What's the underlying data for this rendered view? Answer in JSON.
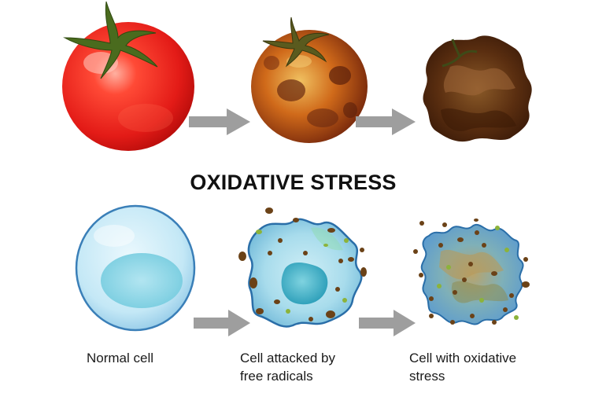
{
  "title": "OXIDATIVE STRESS",
  "captions": {
    "normal_cell": "Normal cell",
    "attacked_line1": "Cell attacked by",
    "attacked_line2": "free radicals",
    "oxidative_line1": "Cell with oxidative",
    "oxidative_line2": "stress"
  },
  "colors": {
    "arrow": "#9e9e9e",
    "tomato_fresh": "#e8201e",
    "tomato_aging": "#c0561a",
    "tomato_rotten": "#6b3a12",
    "cell_normal": "#bfe6f5",
    "cell_outline": "#2a6ea8",
    "nucleus": "#3bb0c4",
    "radical_brown": "#6b4217",
    "radical_green": "#8cb33a"
  }
}
